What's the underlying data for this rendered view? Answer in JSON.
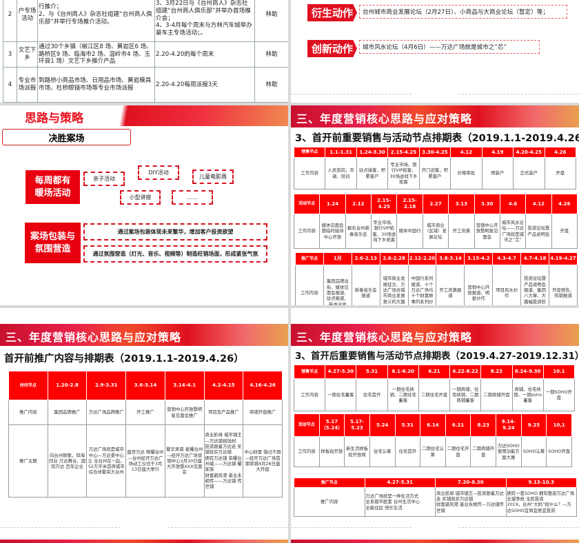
{
  "slide_a": {
    "rows": [
      [
        "2",
        "户专场\n活动",
        "行推介；\n2、与《台州商人》杂志社组建“台州商人俱乐部”并举行专场推介活动。",
        "举办专场活动；\n3、3月22日与《台州商人》杂志社组建“台州商人俱乐部”并举办首场推介会；\n4、3-4月每个周末与方林汽车城举办豪车主专场活动；。",
        "林助"
      ],
      [
        "3",
        "文艺下\n乡",
        "通过30个乡镇（椒江区8 场、黄岩区6 场、路桥区9 场、临海市2 场、温岭市4 场、玉环县1 场）文艺下乡推介产品",
        "2.20-4.20的每个周末",
        "林助"
      ],
      [
        "4",
        "专业市\n场派报",
        "到路桥小商品市场、日用品市场、黄岩模具市场、杜桥眼镜市场等专业市场派报",
        "2.20-4.20每周派报3天",
        "林助"
      ]
    ]
  },
  "slide_b": {
    "items": [
      {
        "tag": "衍生动作",
        "text": "台州城市商业发展论坛（2月27日）、小商品与大商业论坛（暂定）等；"
      },
      {
        "tag": "创新动作",
        "text": "城市风水论坛（4月6日）——万达广场就是城市之“芯”"
      }
    ]
  },
  "slide_c": {
    "header": "思路与策略",
    "subtitle": "决胜案场",
    "block1": {
      "label": "每周都有\n暖场活动",
      "items": [
        "亲子活动",
        "DIY活动",
        "儿童电影周",
        "小型讲座",
        "......"
      ]
    },
    "block2": {
      "label": "案场包装与\n氛围营造",
      "items": [
        "通过案场包装体现未来繁华，增加客户投资欲望",
        "通过氛围营造（灯光、音乐、视频等）制造旺销场面，形成紧张气氛"
      ]
    }
  },
  "slide_d": {
    "header": "三、年度营销核心思路与应对策略",
    "title": "3、首开前重要销售与活动节点排期表（2019.1.1-2019.4.26）",
    "tables": [
      [
        [
          "销售节点",
          "1.1-1.31",
          "1.24-3.30",
          "2.15-4.25",
          "3.30-4.25",
          "4.12",
          "4.19",
          "4.20-4.25",
          "4.26"
        ],
        [
          "工作内容",
          "人员到岗，市调、培训",
          "驻点接客，积累客户",
          "专业市场、银行VIP拓客、30场送戏下乡拓客",
          "开门迎客，积累客户",
          "价格审批",
          "预装户",
          "正式装户",
          "开盘"
        ]
      ],
      [
        [
          "活动节点",
          "1.24",
          "2.12",
          "2.15-4.25",
          "2.15-2.18",
          "2.27",
          "3.13",
          "3.30",
          "4.6",
          "4.12",
          "4.26"
        ],
        [
          "工作内容",
          "媒体见面会暨临时接待中心开放",
          "报名台州新春音乐会",
          "专业市场、银行VIP拓客、30场送戏下乡拓客",
          "媒体中国行",
          "城市商业（区域）发展论坛",
          "开工庆典",
          "营销中心开放暨明星见面会",
          "城市风水论坛——万达广场就是城市之“芯”",
          "投资论坛暨产品说明会",
          "开盘"
        ]
      ],
      [
        [
          "推广节点",
          "1月",
          "2.6-2.13",
          "2.6-2.28",
          "2.12-2.20",
          "3.8-3.14",
          "3.15-4.2",
          "4.3-4.7",
          "4.7-4.18",
          "4.19-4.27"
        ],
        [
          "工作内容",
          "集团品牌出街、媒体见面会报道、驻点报道、新书派发",
          "新春音乐会报道",
          "城市商业发展征文、万达广场对城市商业发展意义的大篇幅炒作",
          "中国行系列报道、十个万达广场与十个财富故事的系列炒作",
          "开工庆典报道",
          "营销中心开放报道、明星炒作",
          "项目风水炒作",
          "投资论坛暨产品说明会报道、集团八大章、大篇幅投资软文炒作",
          "开盘预告、热销报道"
        ]
      ]
    ]
  },
  "slide_e": {
    "header": "三、年度营销核心思路与应对策略",
    "title": "首开前推广内容与排期表（2019.1.1-2019.4.26）",
    "table": [
      [
        "时间节点",
        "1.20-2.8",
        "2.9-3.31",
        "3.6-3.14",
        "3.14-4.1",
        "4.2-4.15",
        "4.16-4.26"
      ],
      [
        "推广内容",
        "集团品牌推广",
        "万达广场品牌推广",
        "开工推广",
        "营销中心开放暨明星见面会推广",
        "项目及产品推广",
        "商铺开盘推广"
      ],
      [
        "推广主题",
        "向台州致敬，四海同台 万达舞台、国际万达 百年企业",
        "万达广场就是城市中心—万达渠中心立 全台州在一起，52万平米首席城市综合体繁荣大台州",
        "盛世万达 辉耀台州—台州经开万达广场动工仪式于3月13日盛大举行",
        "繁华来袭 星耀台州—经开万达广场营销中心3月30日盛大开放暨XXX见面会",
        "商业航母 城市铺王—万达铺摇钱树\n投资跟着万达走 买铺就买万达铺\n拥有万达铺 荣耀台州城——万达铺 耀家族\n财富避风港 基业永相传——万达铺 传世铺",
        "中心财富 错过不再—经开万达广场首期商铺4月26日盛大开盘"
      ]
    ]
  },
  "slide_f": {
    "header": "三、年度营销核心思路与应对策略",
    "title": "3、首开后重要销售与活动节点排期表（2019.4.27-2019.12.31）",
    "tables": [
      [
        [
          "销售节点",
          "4.27-5.30",
          "5.31",
          "6.1-6.20",
          "6.21",
          "6.22-8.22",
          "8.23",
          "8.24-9.30",
          "10.1"
        ],
        [
          "工作内容",
          "一期住宅蓄客",
          "住宅首开",
          "一期住宅续销、二期住宅蓄客",
          "二期住宅开盘",
          "一期商铺、住宅续销、二期商铺蓄客",
          "二期商铺开盘",
          "商铺、住宅续销、一期soho蓄客",
          "一期SOHO开盘"
        ]
      ],
      [
        [
          "活动节点",
          "5.17（5.24）",
          "5.17-5.23",
          "5.24",
          "5.31",
          "6.14",
          "6.21",
          "8.23",
          "9.14-9.24",
          "9.25",
          "10,1"
        ],
        [
          "工作内容",
          "样板段开放",
          "新生活样板段开放周",
          "住宅认筹",
          "住宅首开",
          "二期住宅认筹",
          "二期住宅开盘",
          "二期商铺开盘",
          "万达SOHO使用功能方案大赛",
          "SOHO认筹",
          "SOHO开盘"
        ]
      ],
      [
        [
          "推广节点",
          "4.27-5.31",
          "7.20-8.30",
          "9.13-10.3"
        ],
        [
          "推广内容",
          "万达广场就是一种生活方式\n全系都市配套 台州生活中心\n全能住区 快乐生活",
          "商业航母 城市铺王—投资跟着万达走 买铺就买万达铺\n财富避风港 基业永相传—万达铺传世铺",
          "拥有一套SOHO 拥有整座万达广场\n全城争抢 全民投资\n2019，台州“大妈”抢什么？—万达SOHO宜商宜居宜投资"
        ]
      ]
    ]
  },
  "colors": {
    "accent": "#e8000f"
  }
}
